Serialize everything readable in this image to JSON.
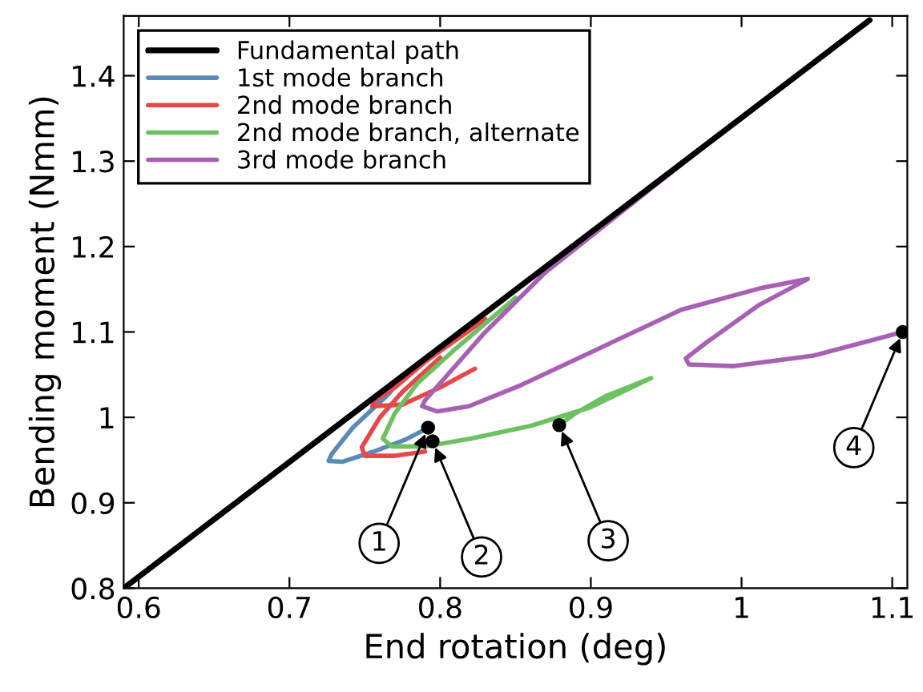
{
  "chart_data": {
    "type": "line",
    "xlabel": "End rotation (deg)",
    "ylabel": "Bending moment (Nmm)",
    "xlim": [
      0.59,
      1.11
    ],
    "ylim": [
      0.8,
      1.47
    ],
    "xticks": [
      0.6,
      0.7,
      0.8,
      0.9,
      {
        "value": 1.0,
        "label": "1"
      },
      1.1
    ],
    "yticks": [
      0.8,
      0.9,
      {
        "value": 1.0,
        "label": "1"
      },
      1.1,
      1.2,
      1.3,
      1.4
    ],
    "grid": false,
    "legend": "top left",
    "marker": "none",
    "line_style": "solid",
    "series": [
      {
        "name": "Fundamental path",
        "color": "#000000",
        "x": [
          0.59,
          1.085
        ],
        "values": [
          0.8,
          1.465
        ]
      },
      {
        "name": "1st mode branch",
        "color": "#5a8ab8",
        "x": [
          0.772,
          0.765,
          0.742,
          0.728,
          0.726,
          0.735,
          0.756,
          0.777,
          0.789
        ],
        "values": [
          1.04,
          1.026,
          0.988,
          0.957,
          0.949,
          0.948,
          0.96,
          0.974,
          0.985
        ]
      },
      {
        "name": "2nd mode branch",
        "color": "#e8474a",
        "x": [
          0.83,
          0.79,
          0.77,
          0.757,
          0.755,
          0.775,
          0.8,
          0.823,
          null,
          0.8,
          0.775,
          0.76,
          0.748,
          0.75,
          0.77,
          0.79
        ],
        "values": [
          1.115,
          1.065,
          1.035,
          1.02,
          1.013,
          1.015,
          1.035,
          1.057,
          null,
          1.07,
          1.03,
          1.0,
          0.965,
          0.955,
          0.955,
          0.96
        ]
      },
      {
        "name": "2nd mode branch, alternate",
        "color": "#6cc160",
        "x": [
          0.85,
          0.81,
          0.785,
          0.77,
          0.762,
          0.768,
          0.79,
          0.82,
          0.86,
          0.9,
          0.94,
          0.91,
          0.89,
          0.879
        ],
        "values": [
          1.14,
          1.08,
          1.04,
          1.005,
          0.975,
          0.966,
          0.966,
          0.975,
          0.99,
          1.012,
          1.046,
          1.025,
          1.005,
          0.991
        ]
      },
      {
        "name": "3rd mode branch",
        "color": "#a860b5",
        "x": [
          0.97,
          0.92,
          0.87,
          0.83,
          0.805,
          0.79,
          0.788,
          0.798,
          0.819,
          0.854,
          0.907,
          0.96,
          1.012,
          1.044,
          1.012,
          0.977,
          0.963,
          0.965,
          0.995,
          1.047,
          1.107
        ],
        "values": [
          1.31,
          1.24,
          1.17,
          1.1,
          1.05,
          1.02,
          1.013,
          1.007,
          1.013,
          1.038,
          1.082,
          1.126,
          1.151,
          1.162,
          1.132,
          1.088,
          1.069,
          1.062,
          1.06,
          1.072,
          1.1
        ]
      },
      {
        "type": "scatter",
        "color": "#000000",
        "marker": "circle",
        "x": [
          0.792,
          0.795,
          0.879,
          1.107
        ],
        "values": [
          0.988,
          0.972,
          0.991,
          1.1
        ]
      }
    ],
    "annotations": [
      {
        "text": "1",
        "x": 0.792,
        "y": 0.988
      },
      {
        "text": "2",
        "x": 0.795,
        "y": 0.972
      },
      {
        "text": "3",
        "x": 0.879,
        "y": 0.991
      },
      {
        "text": "4",
        "x": 1.107,
        "y": 1.1
      }
    ]
  }
}
